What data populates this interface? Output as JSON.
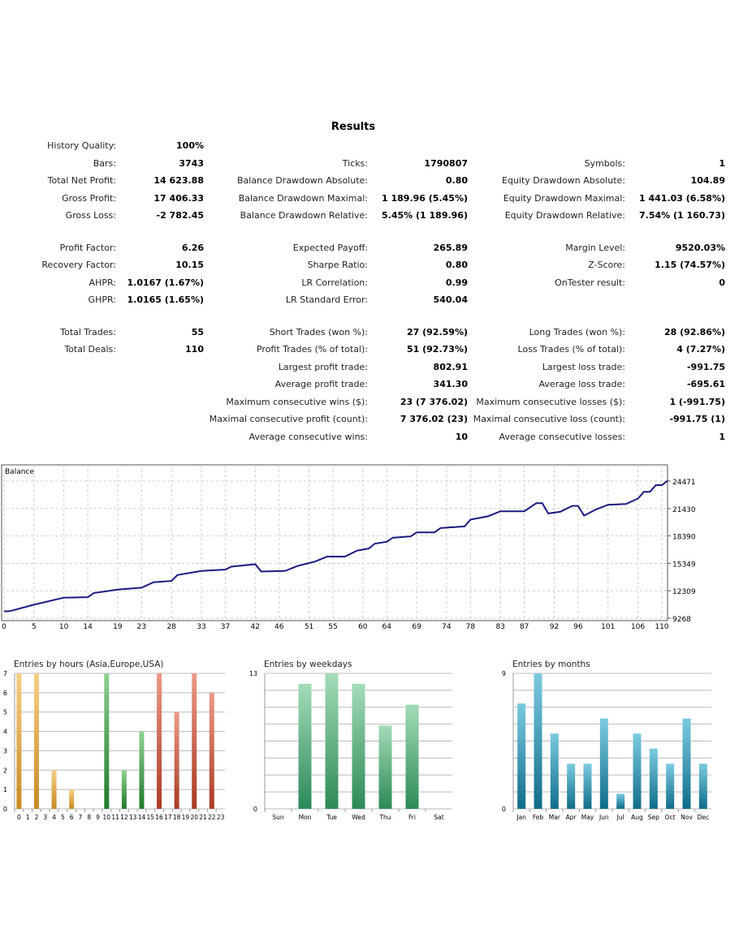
{
  "title": "Results",
  "stats": [
    [
      [
        "History Quality:",
        "100%",
        "",
        "",
        "",
        ""
      ],
      [
        "Bars:",
        "3743",
        "Ticks:",
        "1790807",
        "Symbols:",
        "1"
      ],
      [
        "Total Net Profit:",
        "14 623.88",
        "Balance Drawdown Absolute:",
        "0.80",
        "Equity Drawdown Absolute:",
        "104.89"
      ],
      [
        "Gross Profit:",
        "17 406.33",
        "Balance Drawdown Maximal:",
        "1 189.96 (5.45%)",
        "Equity Drawdown Maximal:",
        "1 441.03 (6.58%)"
      ],
      [
        "Gross Loss:",
        "-2 782.45",
        "Balance Drawdown Relative:",
        "5.45% (1 189.96)",
        "Equity Drawdown Relative:",
        "7.54% (1 160.73)"
      ]
    ],
    [
      [
        "Profit Factor:",
        "6.26",
        "Expected Payoff:",
        "265.89",
        "Margin Level:",
        "9520.03%"
      ],
      [
        "Recovery Factor:",
        "10.15",
        "Sharpe Ratio:",
        "0.80",
        "Z-Score:",
        "1.15 (74.57%)"
      ],
      [
        "AHPR:",
        "1.0167 (1.67%)",
        "LR Correlation:",
        "0.99",
        "OnTester result:",
        "0"
      ],
      [
        "GHPR:",
        "1.0165 (1.65%)",
        "LR Standard Error:",
        "540.04",
        "",
        ""
      ]
    ],
    [
      [
        "Total Trades:",
        "55",
        "Short Trades (won %):",
        "27 (92.59%)",
        "Long Trades (won %):",
        "28 (92.86%)"
      ],
      [
        "Total Deals:",
        "110",
        "Profit Trades (% of total):",
        "51 (92.73%)",
        "Loss Trades (% of total):",
        "4 (7.27%)"
      ],
      [
        "",
        "",
        "Largest profit trade:",
        "802.91",
        "Largest loss trade:",
        "-991.75"
      ],
      [
        "",
        "",
        "Average profit trade:",
        "341.30",
        "Average loss trade:",
        "-695.61"
      ],
      [
        "",
        "",
        "Maximum consecutive wins ($):",
        "23 (7 376.02)",
        "Maximum consecutive losses ($):",
        "1 (-991.75)"
      ],
      [
        "",
        "",
        "Maximal consecutive profit (count):",
        "7 376.02 (23)",
        "Maximal consecutive loss (count):",
        "-991.75 (1)"
      ],
      [
        "",
        "",
        "Average consecutive wins:",
        "10",
        "Average consecutive losses:",
        "1"
      ]
    ]
  ],
  "chart_data": [
    {
      "type": "line",
      "title": "Balance",
      "line_color": "#1a1a80",
      "xlim": [
        0,
        112
      ],
      "ylim": [
        9268,
        25000
      ],
      "x_ticks": [
        0,
        5,
        10,
        14,
        19,
        23,
        28,
        33,
        37,
        42,
        46,
        51,
        55,
        60,
        64,
        69,
        74,
        78,
        83,
        87,
        92,
        96,
        101,
        106,
        110
      ],
      "y_ticks": [
        9268,
        12309,
        15349,
        18390,
        21430,
        24471
      ],
      "grid": true,
      "points": [
        [
          0,
          10016
        ],
        [
          1,
          10050
        ],
        [
          5,
          10765
        ],
        [
          10,
          11543
        ],
        [
          14,
          11600
        ],
        [
          15,
          12051
        ],
        [
          19,
          12440
        ],
        [
          23,
          12650
        ],
        [
          25,
          13250
        ],
        [
          28,
          13400
        ],
        [
          29,
          14057
        ],
        [
          33,
          14506
        ],
        [
          37,
          14655
        ],
        [
          38,
          14985
        ],
        [
          42,
          15254
        ],
        [
          43,
          14446
        ],
        [
          47,
          14506
        ],
        [
          49,
          15044
        ],
        [
          52,
          15550
        ],
        [
          54,
          16090
        ],
        [
          57,
          16090
        ],
        [
          59,
          16750
        ],
        [
          61,
          16990
        ],
        [
          62,
          17530
        ],
        [
          64,
          17738
        ],
        [
          65,
          18187
        ],
        [
          68,
          18337
        ],
        [
          69,
          18785
        ],
        [
          72,
          18785
        ],
        [
          73,
          19265
        ],
        [
          77,
          19444
        ],
        [
          78,
          20193
        ],
        [
          81,
          20582
        ],
        [
          83,
          21120
        ],
        [
          87,
          21120
        ],
        [
          89,
          22018
        ],
        [
          90,
          22018
        ],
        [
          91,
          20880
        ],
        [
          93,
          21060
        ],
        [
          95,
          21720
        ],
        [
          96,
          21720
        ],
        [
          97,
          20640
        ],
        [
          99,
          21330
        ],
        [
          101,
          21840
        ],
        [
          104,
          21930
        ],
        [
          106,
          22527
        ],
        [
          107,
          23275
        ],
        [
          108,
          23275
        ],
        [
          109,
          24023
        ],
        [
          110,
          24023
        ],
        [
          111,
          24533
        ]
      ]
    },
    {
      "type": "bar",
      "title": "Entries by hours (Asia,Europe,USA)",
      "categories": [
        "0",
        "1",
        "2",
        "3",
        "4",
        "5",
        "6",
        "7",
        "8",
        "9",
        "10",
        "11",
        "12",
        "13",
        "14",
        "15",
        "16",
        "17",
        "18",
        "19",
        "20",
        "21",
        "22",
        "23"
      ],
      "values": [
        7,
        0,
        7,
        0,
        2,
        0,
        1,
        0,
        0,
        0,
        7,
        0,
        2,
        0,
        4,
        0,
        7,
        0,
        5,
        0,
        7,
        0,
        6,
        0
      ],
      "ylim": [
        0,
        7
      ],
      "y_ticks": [
        0,
        1,
        2,
        3,
        4,
        5,
        6,
        7
      ],
      "colors": {
        "asia": "#e0a040",
        "europe": "#3a9a40",
        "usa": "#c85a44"
      }
    },
    {
      "type": "bar",
      "title": "Entries by weekdays",
      "categories": [
        "Sun",
        "Mon",
        "Tue",
        "Wed",
        "Thu",
        "Fri",
        "Sat"
      ],
      "values": [
        0,
        12,
        13,
        12,
        8,
        10,
        0
      ],
      "ylim": [
        0,
        13
      ],
      "y_ticks": [
        0,
        13
      ],
      "color": "#3fa870"
    },
    {
      "type": "bar",
      "title": "Entries by months",
      "categories": [
        "Jan",
        "Feb",
        "Mar",
        "Apr",
        "May",
        "Jun",
        "Jul",
        "Aug",
        "Sep",
        "Oct",
        "Nov",
        "Dec"
      ],
      "values": [
        7,
        9,
        5,
        3,
        3,
        6,
        1,
        5,
        4,
        3,
        6,
        3
      ],
      "ylim": [
        0,
        9
      ],
      "y_ticks": [
        0,
        9
      ],
      "color": "#2a90aa"
    }
  ]
}
